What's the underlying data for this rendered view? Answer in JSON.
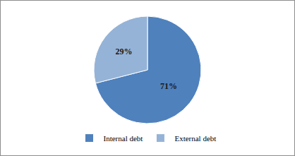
{
  "chart_data": {
    "type": "pie",
    "categories": [
      "Internal debt",
      "External debt"
    ],
    "values": [
      71,
      29
    ],
    "value_labels": [
      "71%",
      "29%"
    ],
    "colors": [
      "#4f81bd",
      "#95b3d7"
    ],
    "data_labels": true,
    "legend": "bottom"
  }
}
